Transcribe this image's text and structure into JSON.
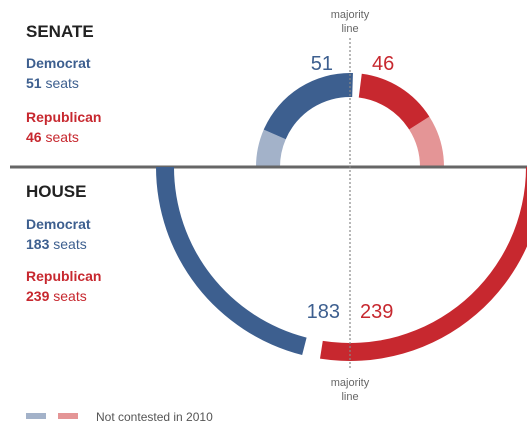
{
  "colors": {
    "dem": "#3d5f8f",
    "dem_light": "#a3b2c9",
    "rep": "#c7282f",
    "rep_light": "#e49596",
    "divider": "#666666",
    "heading": "#222222",
    "label_gray": "#666666",
    "majority_line": "#888888"
  },
  "chart_data": [
    {
      "type": "arc-seat-chart",
      "chamber": "senate",
      "title": "SENATE",
      "total_seats": 100,
      "series": [
        {
          "name": "Democrat",
          "seats": 51,
          "seats_label": "51",
          "unit": "seats",
          "contested": 38,
          "not_contested": 13
        },
        {
          "name": "Republican",
          "seats": 46,
          "seats_label": "46",
          "unit": "seats",
          "contested": 28,
          "not_contested": 18
        }
      ],
      "center_labels": {
        "left": "51",
        "right": "46"
      },
      "majority_line_label": [
        "majority",
        "line"
      ]
    },
    {
      "type": "arc-seat-chart",
      "chamber": "house",
      "title": "HOUSE",
      "total_seats": 435,
      "series": [
        {
          "name": "Democrat",
          "seats": 183,
          "seats_label": "183",
          "unit": "seats"
        },
        {
          "name": "Republican",
          "seats": 239,
          "seats_label": "239",
          "unit": "seats"
        }
      ],
      "center_labels": {
        "left": "183",
        "right": "239"
      },
      "majority_line_label": [
        "majority",
        "line"
      ]
    }
  ],
  "legend": {
    "label": "Not contested in 2010"
  }
}
